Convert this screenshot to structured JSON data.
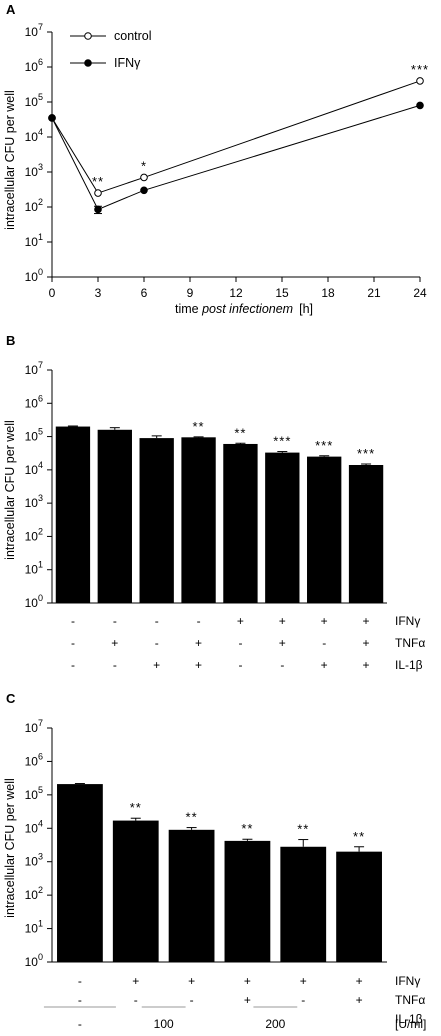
{
  "chart_data": [
    {
      "panel": "A",
      "type": "line",
      "ylabel": "intracellular CFU per well",
      "xlabel_plain": "time ",
      "xlabel_italic": "post infectionem",
      "xlabel_unit": "[h]",
      "yscale": "log",
      "ylim": [
        1,
        10000000
      ],
      "xlim": [
        0,
        24
      ],
      "x_ticks": [
        0,
        3,
        6,
        9,
        12,
        15,
        18,
        21,
        24
      ],
      "legend_position": "top-left",
      "series": [
        {
          "name": "control",
          "marker": "open-circle",
          "x": [
            0,
            3,
            6,
            24
          ],
          "y": [
            35000,
            250,
            700,
            400000
          ]
        },
        {
          "name": "IFNγ",
          "marker": "filled-circle",
          "x": [
            0,
            3,
            6,
            24
          ],
          "y": [
            35000,
            85,
            300,
            80000
          ],
          "errors": [
            0,
            20,
            0,
            0
          ]
        }
      ],
      "annotations": [
        {
          "x": 3,
          "y": 250,
          "text": "**"
        },
        {
          "x": 6,
          "y": 700,
          "text": "*"
        },
        {
          "x": 24,
          "y": 400000,
          "text": "***"
        }
      ]
    },
    {
      "panel": "B",
      "type": "bar",
      "ylabel": "intracellular CFU per well",
      "yscale": "log",
      "ylim": [
        1,
        10000000
      ],
      "values": [
        200000,
        160000,
        90000,
        95000,
        60000,
        33000,
        25000,
        14000
      ],
      "errors": [
        8000,
        25000,
        15000,
        3000,
        3000,
        2500,
        1500,
        1000
      ],
      "significance": [
        "",
        "",
        "",
        "**",
        "**",
        "***",
        "***",
        "***"
      ],
      "rows": [
        {
          "label": "IFNγ",
          "signs": [
            "-",
            "-",
            "-",
            "-",
            "+",
            "+",
            "+",
            "+"
          ]
        },
        {
          "label": "TNFα",
          "signs": [
            "-",
            "+",
            "-",
            "+",
            "-",
            "+",
            "-",
            "+"
          ]
        },
        {
          "label": "IL-1β",
          "signs": [
            "-",
            "-",
            "+",
            "+",
            "-",
            "-",
            "+",
            "+"
          ]
        }
      ]
    },
    {
      "panel": "C",
      "type": "bar",
      "ylabel": "intracellular CFU per well",
      "yscale": "log",
      "ylim": [
        1,
        10000000
      ],
      "values": [
        210000,
        17000,
        9000,
        4200,
        2800,
        2000
      ],
      "errors": [
        8000,
        3000,
        1500,
        500,
        1800,
        800
      ],
      "significance": [
        "",
        "**",
        "**",
        "**",
        "**",
        "**"
      ],
      "rows": [
        {
          "label": "IFNγ",
          "signs": [
            "-",
            "+",
            "+",
            "+",
            "+",
            "+"
          ]
        },
        {
          "label": "TNFα",
          "signs": [
            "-",
            "-",
            "-",
            "+",
            "-",
            "+"
          ]
        },
        {
          "label": "IL-1β",
          "signs": [
            "",
            "",
            "",
            "",
            "",
            ""
          ]
        }
      ],
      "dose_labels": [
        "-",
        "100",
        "200"
      ],
      "dose_unit": "[U/ml]"
    }
  ]
}
